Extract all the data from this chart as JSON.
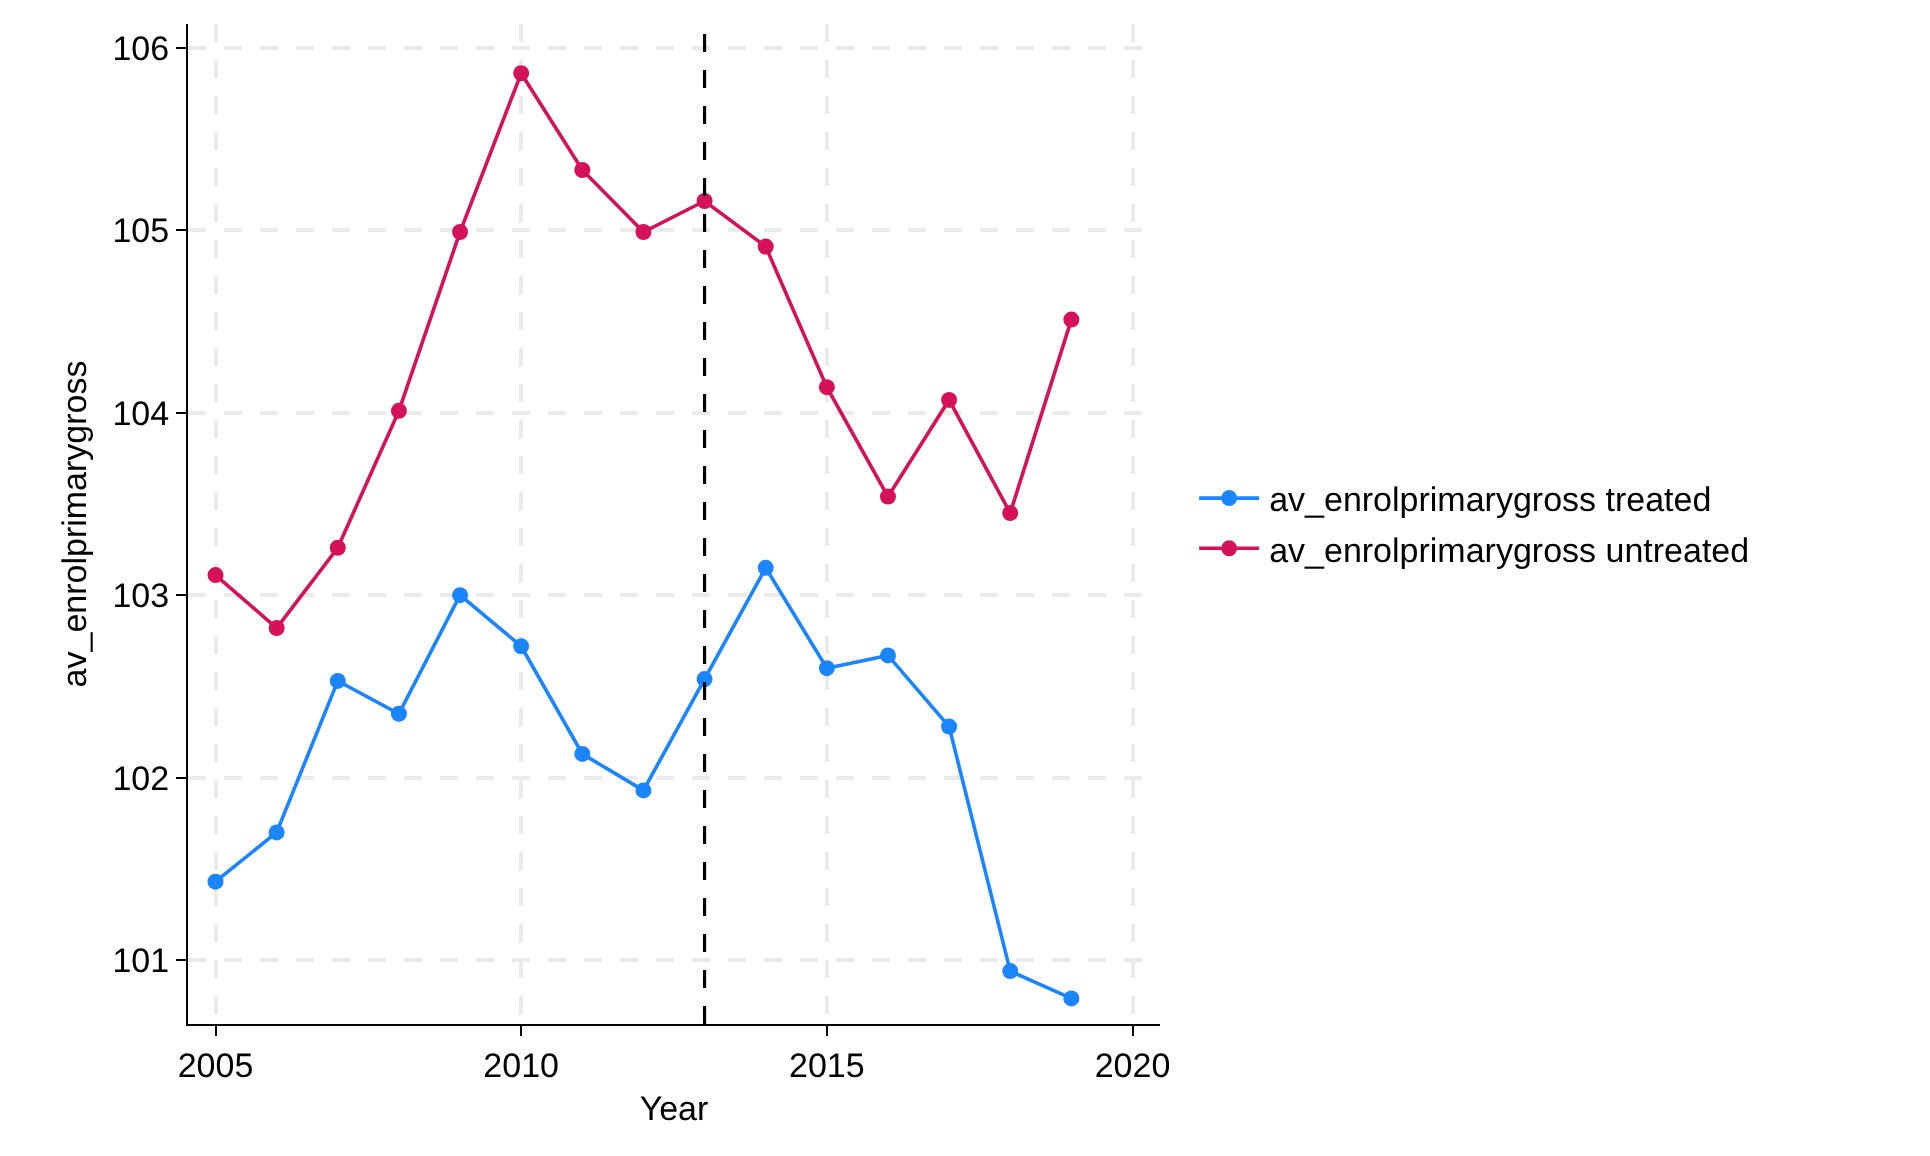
{
  "chart_data": {
    "type": "line",
    "xlabel": "Year",
    "ylabel": "av_enrolprimarygross",
    "x": [
      2005,
      2006,
      2007,
      2008,
      2009,
      2010,
      2011,
      2012,
      2013,
      2014,
      2015,
      2016,
      2017,
      2018,
      2019
    ],
    "series": [
      {
        "name": "av_enrolprimarygross treated",
        "color": "#1a85ff",
        "values": [
          101.43,
          101.7,
          102.53,
          102.35,
          103.0,
          102.72,
          102.13,
          101.93,
          102.54,
          103.15,
          102.6,
          102.67,
          102.28,
          100.94,
          100.79
        ]
      },
      {
        "name": "av_enrolprimarygross untreated",
        "color": "#d41159",
        "values": [
          103.11,
          102.82,
          103.26,
          104.01,
          104.99,
          105.86,
          105.33,
          104.99,
          105.16,
          104.91,
          104.14,
          103.54,
          104.07,
          103.45,
          104.51
        ]
      }
    ],
    "xlim": [
      2004.55,
      2020.45
    ],
    "xticks": [
      2005,
      2010,
      2015,
      2020
    ],
    "ylim": [
      100.65,
      106.13
    ],
    "yticks": [
      101,
      102,
      103,
      104,
      105,
      106
    ],
    "ref_lines": [
      {
        "axis": "x",
        "value": 2013,
        "color": "#000000",
        "line_style": "dashed"
      }
    ],
    "grid": true,
    "legend": "right",
    "marker": "circle",
    "line_style": "solid"
  }
}
